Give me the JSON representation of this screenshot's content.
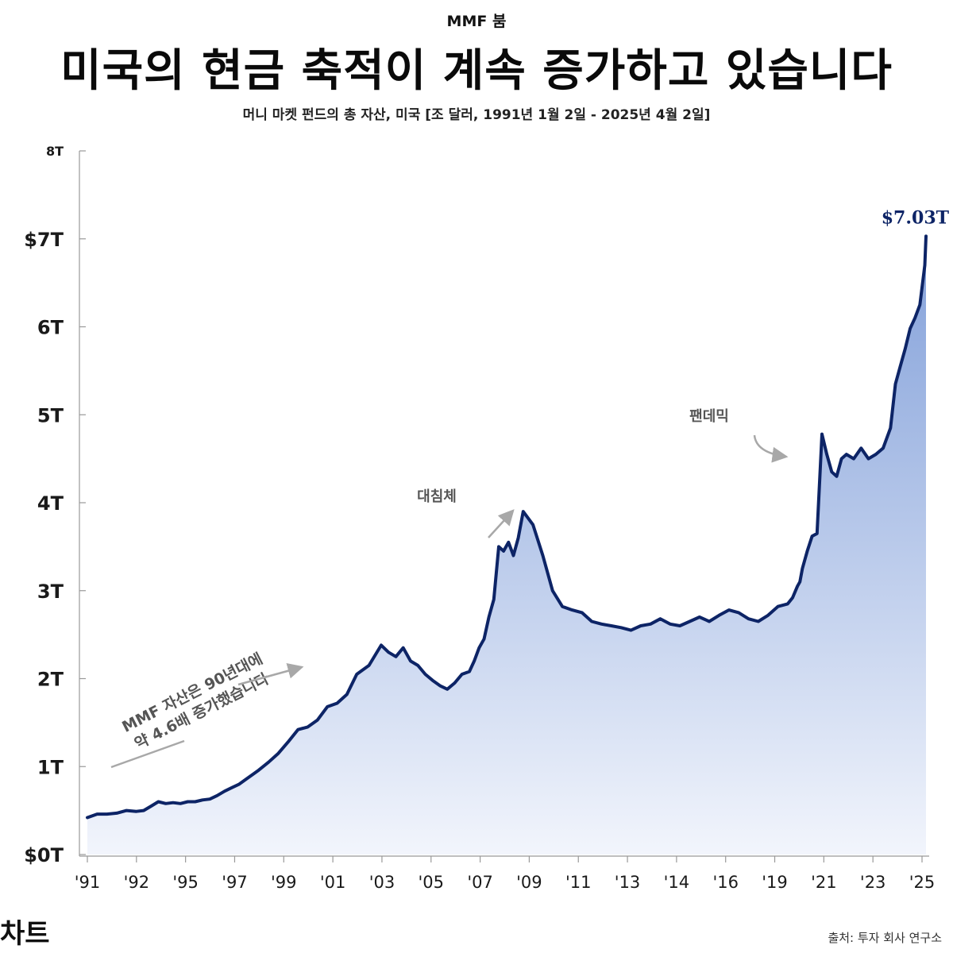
{
  "kicker": "MMF 붐",
  "footer": {
    "brand": "차트",
    "source": "출처: 투자 회사 연구소"
  },
  "colors": {
    "line": "#0d2466",
    "fill_top": "#7d9cd8",
    "fill_bottom": "#f2f5fc",
    "axis": "#999999",
    "annotation": "#555555",
    "arrow": "#a8a8a8"
  },
  "chart_data": {
    "type": "area",
    "title": "미국의 현금 축적이 계속 증가하고 있습니다",
    "subtitle": "머니 마켓 펀드의 총 자산, 미국 [조 달러, 1991년 1월 2일 - 2025년 4월 2일]",
    "xlabel": "",
    "ylabel": "",
    "ylim": [
      0,
      8
    ],
    "grid": false,
    "y_ticks": [
      {
        "value": 8,
        "label": "8T"
      },
      {
        "value": 7,
        "label": "$7T"
      },
      {
        "value": 6,
        "label": "6T"
      },
      {
        "value": 5,
        "label": "5T"
      },
      {
        "value": 4,
        "label": "4T"
      },
      {
        "value": 3,
        "label": "3T"
      },
      {
        "value": 2,
        "label": "2T"
      },
      {
        "value": 1,
        "label": "1T"
      },
      {
        "value": 0,
        "label": "$0T"
      }
    ],
    "x_ticks": [
      "'91",
      "'92",
      "'95",
      "'97",
      "'99",
      "'01",
      "'03",
      "'05",
      "'07",
      "'09",
      "'11",
      "'13",
      "'14",
      "'16",
      "'19",
      "'21",
      "'23",
      "'25"
    ],
    "series": [
      {
        "name": "머니 마켓 펀드 총 자산 (조 달러)",
        "x": [
          0,
          0.4,
          0.8,
          1.2,
          1.6,
          2.0,
          2.3,
          2.6,
          2.9,
          3.2,
          3.5,
          3.8,
          4.1,
          4.4,
          4.7,
          5.0,
          5.3,
          5.6,
          5.9,
          6.2,
          6.5,
          6.8,
          7.0,
          7.4,
          7.8,
          8.2,
          8.6,
          9.0,
          9.4,
          9.8,
          10.2,
          10.6,
          11.0,
          11.5,
          12.0,
          12.3,
          12.6,
          12.9,
          13.2,
          13.5,
          13.8,
          14.1,
          14.4,
          14.7,
          15.0,
          15.3,
          15.6,
          15.8,
          16.0,
          16.2,
          16.4,
          16.6,
          16.7,
          16.8,
          17.0,
          17.2,
          17.4,
          17.6,
          17.8,
          18.2,
          18.6,
          19.0,
          19.4,
          19.8,
          20.2,
          20.6,
          21.0,
          21.4,
          21.8,
          22.2,
          22.6,
          23.0,
          23.4,
          23.8,
          24.2,
          24.6,
          25.0,
          25.4,
          25.8,
          26.2,
          26.6,
          27.0,
          27.4,
          27.8,
          28.2,
          28.6,
          28.8,
          29.0,
          29.1,
          29.2,
          29.4,
          29.6,
          29.8,
          30.0,
          30.2,
          30.4,
          30.6,
          30.8,
          31.0,
          31.3,
          31.6,
          31.9,
          32.2,
          32.5,
          32.8,
          33.0,
          33.2,
          33.4,
          33.6,
          33.8,
          34.0,
          34.2,
          34.25
        ],
        "values": [
          0.42,
          0.46,
          0.46,
          0.47,
          0.5,
          0.49,
          0.5,
          0.55,
          0.6,
          0.58,
          0.59,
          0.58,
          0.6,
          0.6,
          0.62,
          0.63,
          0.67,
          0.72,
          0.76,
          0.8,
          0.86,
          0.92,
          0.96,
          1.05,
          1.15,
          1.28,
          1.42,
          1.45,
          1.53,
          1.68,
          1.72,
          1.82,
          2.05,
          2.15,
          2.38,
          2.3,
          2.25,
          2.35,
          2.2,
          2.15,
          2.05,
          1.98,
          1.92,
          1.88,
          1.95,
          2.05,
          2.08,
          2.2,
          2.35,
          2.45,
          2.7,
          2.9,
          3.2,
          3.5,
          3.45,
          3.55,
          3.4,
          3.6,
          3.9,
          3.75,
          3.4,
          3.0,
          2.82,
          2.78,
          2.75,
          2.65,
          2.62,
          2.6,
          2.58,
          2.55,
          2.6,
          2.62,
          2.68,
          2.62,
          2.6,
          2.65,
          2.7,
          2.65,
          2.72,
          2.78,
          2.75,
          2.68,
          2.65,
          2.72,
          2.82,
          2.85,
          2.92,
          3.05,
          3.1,
          3.25,
          3.45,
          3.62,
          3.65,
          4.78,
          4.55,
          4.35,
          4.3,
          4.5,
          4.55,
          4.5,
          4.62,
          4.5,
          4.55,
          4.62,
          4.85,
          5.35,
          5.55,
          5.75,
          5.98,
          6.1,
          6.25,
          6.7,
          7.03
        ]
      }
    ],
    "end_label": "$7.03T",
    "annotations": [
      {
        "text": "팬데믹"
      },
      {
        "text": "대침체"
      },
      {
        "text": "MMF 자산은 90년대에"
      },
      {
        "text": "약 4.6배 증가했습니다"
      }
    ]
  }
}
